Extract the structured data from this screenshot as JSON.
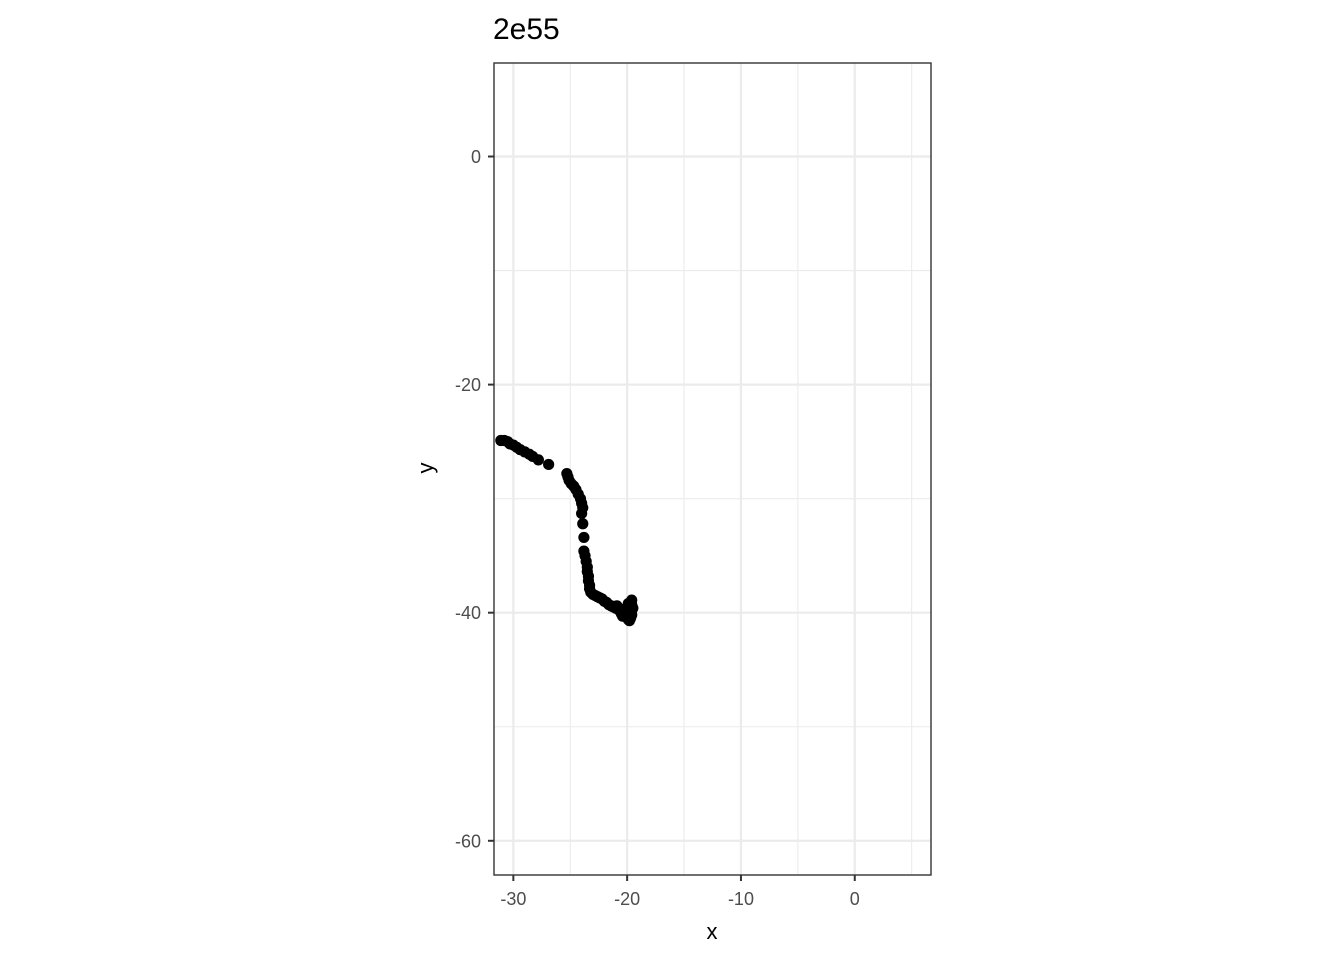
{
  "chart_data": {
    "type": "scatter",
    "title": "2e55",
    "xlabel": "x",
    "ylabel": "y",
    "xlim": [
      -31.7,
      6.7
    ],
    "ylim": [
      -63.0,
      8.2
    ],
    "x_major_ticks": [
      -30,
      -20,
      -10,
      0
    ],
    "x_tick_labels": [
      "-30",
      "-20",
      "-10",
      "0"
    ],
    "x_minor_ticks": [
      -25,
      -15,
      -5,
      5
    ],
    "y_major_ticks": [
      0,
      -20,
      -40,
      -60
    ],
    "y_tick_labels": [
      "0",
      "-20",
      "-40",
      "-60"
    ],
    "y_minor_ticks": [
      -10,
      -30,
      -50
    ],
    "grid": true,
    "point_color": "#000000",
    "points": [
      [
        -31.1,
        -24.9
      ],
      [
        -30.8,
        -24.9
      ],
      [
        -30.5,
        -25.0
      ],
      [
        -30.3,
        -25.2
      ],
      [
        -30.0,
        -25.3
      ],
      [
        -29.7,
        -25.5
      ],
      [
        -29.4,
        -25.7
      ],
      [
        -29.0,
        -25.9
      ],
      [
        -28.6,
        -26.1
      ],
      [
        -28.3,
        -26.3
      ],
      [
        -27.8,
        -26.6
      ],
      [
        -26.9,
        -27.0
      ],
      [
        -25.3,
        -27.8
      ],
      [
        -25.2,
        -28.1
      ],
      [
        -25.1,
        -28.4
      ],
      [
        -24.9,
        -28.7
      ],
      [
        -24.7,
        -28.9
      ],
      [
        -24.5,
        -29.2
      ],
      [
        -24.3,
        -29.6
      ],
      [
        -24.1,
        -30.0
      ],
      [
        -24.0,
        -30.4
      ],
      [
        -23.9,
        -30.8
      ],
      [
        -24.0,
        -31.3
      ],
      [
        -23.9,
        -32.2
      ],
      [
        -23.8,
        -33.4
      ],
      [
        -23.8,
        -34.6
      ],
      [
        -23.7,
        -35.0
      ],
      [
        -23.6,
        -35.5
      ],
      [
        -23.5,
        -36.0
      ],
      [
        -23.5,
        -36.4
      ],
      [
        -23.4,
        -36.8
      ],
      [
        -23.4,
        -37.2
      ],
      [
        -23.3,
        -37.6
      ],
      [
        -23.3,
        -37.9
      ],
      [
        -23.2,
        -38.2
      ],
      [
        -23.0,
        -38.4
      ],
      [
        -22.8,
        -38.5
      ],
      [
        -22.6,
        -38.6
      ],
      [
        -22.4,
        -38.7
      ],
      [
        -22.2,
        -38.8
      ],
      [
        -22.0,
        -39.0
      ],
      [
        -21.8,
        -39.1
      ],
      [
        -21.6,
        -39.3
      ],
      [
        -21.4,
        -39.4
      ],
      [
        -21.2,
        -39.5
      ],
      [
        -21.0,
        -39.6
      ],
      [
        -20.9,
        -39.4
      ],
      [
        -20.8,
        -39.7
      ],
      [
        -20.6,
        -39.9
      ],
      [
        -20.5,
        -40.1
      ],
      [
        -20.4,
        -40.3
      ],
      [
        -20.2,
        -40.2
      ],
      [
        -20.1,
        -39.9
      ],
      [
        -20.0,
        -40.4
      ],
      [
        -19.9,
        -40.6
      ],
      [
        -19.8,
        -40.7
      ],
      [
        -19.7,
        -40.5
      ],
      [
        -19.6,
        -40.2
      ],
      [
        -19.6,
        -39.8
      ],
      [
        -19.5,
        -39.6
      ],
      [
        -19.6,
        -39.3
      ],
      [
        -19.7,
        -39.1
      ],
      [
        -19.6,
        -38.9
      ],
      [
        -19.9,
        -39.2
      ],
      [
        -19.8,
        -39.6
      ],
      [
        -19.7,
        -40.0
      ],
      [
        -20.3,
        -39.7
      ]
    ]
  }
}
